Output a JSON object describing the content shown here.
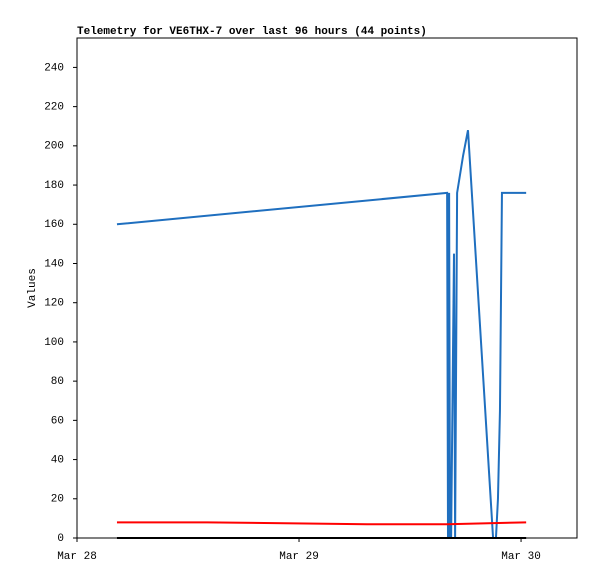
{
  "chart_data": {
    "type": "line",
    "title": "Telemetry for VE6THX-7 over last 96 hours (44 points)",
    "y_label": "Values",
    "xlim": [
      0,
      2.252
    ],
    "ylim": [
      0,
      255
    ],
    "xticks": [
      {
        "value": 0,
        "label": "Mar 28"
      },
      {
        "value": 1,
        "label": "Mar 29"
      },
      {
        "value": 2,
        "label": "Mar 30"
      }
    ],
    "yticks": [
      0,
      20,
      40,
      60,
      80,
      100,
      120,
      140,
      160,
      180,
      200,
      220,
      240
    ],
    "grid": false,
    "series": [
      {
        "color": "#1f6fbf",
        "x": [
          0.18,
          1.667,
          1.671,
          1.676,
          1.68,
          1.685,
          1.698,
          1.703,
          1.712,
          1.739,
          1.761,
          1.874,
          1.887,
          1.896,
          1.905,
          1.914,
          2.023
        ],
        "values": [
          160,
          176,
          0,
          176,
          0,
          0,
          145,
          0,
          176,
          195,
          208,
          0,
          0,
          20,
          65,
          176,
          176
        ]
      },
      {
        "color": "#ff0000",
        "x": [
          0.18,
          0.586,
          1.306,
          1.667,
          2.023
        ],
        "values": [
          8,
          8,
          7,
          7,
          8
        ]
      },
      {
        "color": "#000000",
        "x": [
          0.18,
          1.667,
          2.023
        ],
        "values": [
          0,
          0,
          0
        ]
      }
    ]
  }
}
